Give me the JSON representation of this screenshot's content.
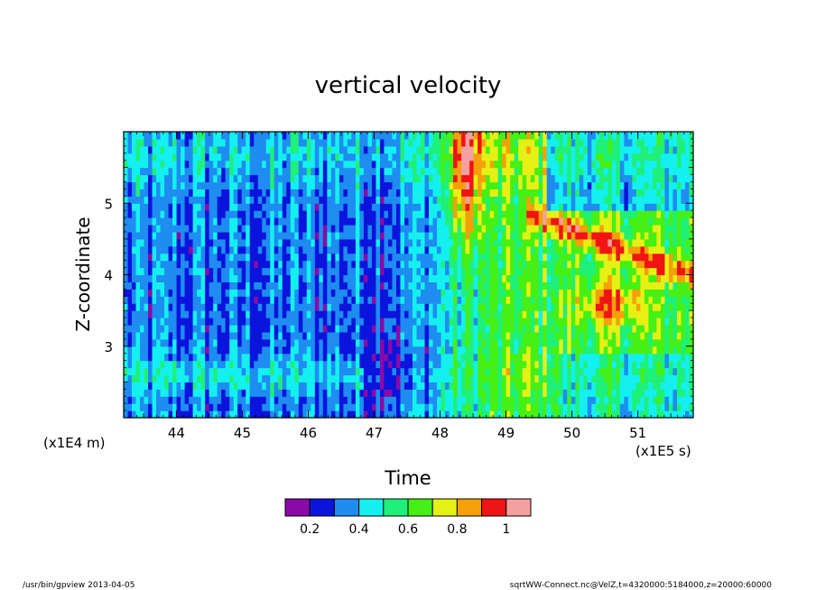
{
  "chart_data": {
    "type": "heatmap",
    "title": "vertical velocity",
    "xlabel": "Time",
    "ylabel": "Z-coordinate",
    "x_unit_label": "(x1E5 s)",
    "y_unit_label": "(x1E4 m)",
    "xlim": [
      43.2,
      51.84
    ],
    "ylim": [
      2.0,
      6.0
    ],
    "x_ticks": [
      "44",
      "45",
      "46",
      "47",
      "48",
      "49",
      "50",
      "51"
    ],
    "y_ticks": [
      "3",
      "4",
      "5"
    ],
    "colorbar": {
      "levels": [
        0.1,
        0.2,
        0.3,
        0.4,
        0.5,
        0.6,
        0.7,
        0.8,
        0.9,
        1.0
      ],
      "labels": [
        "0.2",
        "0.4",
        "0.6",
        "0.8",
        "1"
      ],
      "colors": [
        "#8a0aa8",
        "#0a14dc",
        "#1e8cf0",
        "#14f0f0",
        "#1ef078",
        "#46f014",
        "#e6f014",
        "#f5a00a",
        "#f01414",
        "#f5a0a0"
      ]
    },
    "field_summary": [
      {
        "time_range": [
          43.2,
          48.0
        ],
        "z_range": [
          2.0,
          6.0
        ],
        "typical_value": 0.25
      },
      {
        "time_range": [
          48.0,
          49.6
        ],
        "z_range": [
          2.0,
          6.0
        ],
        "typical_value": 0.6
      },
      {
        "time_range": [
          49.6,
          51.84
        ],
        "z_range": [
          3.0,
          4.8
        ],
        "typical_value": 0.55
      },
      {
        "time_range": [
          48.2,
          48.6
        ],
        "z_range": [
          4.8,
          6.0
        ],
        "typical_value": 0.9
      },
      {
        "time_range": [
          50.4,
          50.9
        ],
        "z_range": [
          3.4,
          3.8
        ],
        "typical_value": 0.8
      }
    ]
  },
  "footer": {
    "left": "/usr/bin/gpview   2013-04-05",
    "right": "sqrtWW-Connect.nc@VelZ,t=4320000:5184000,z=20000:60000"
  }
}
